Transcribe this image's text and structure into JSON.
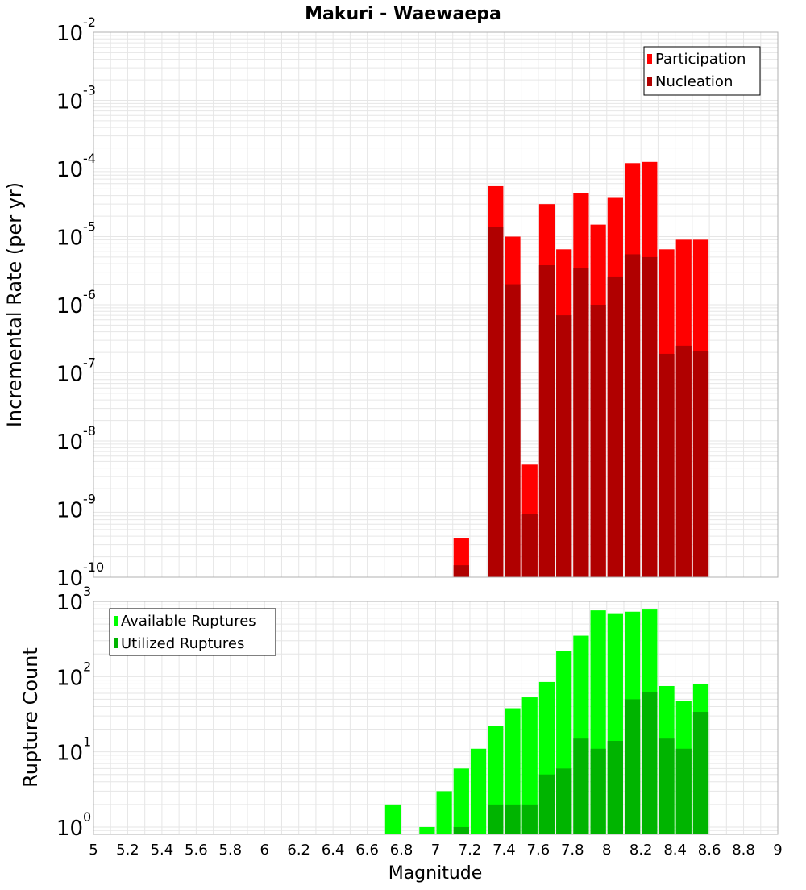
{
  "title": "Makuri - Waewaepa",
  "xlabel": "Magnitude",
  "x_ticks": [
    "5",
    "5.2",
    "5.4",
    "5.6",
    "5.8",
    "6",
    "6.2",
    "6.4",
    "6.6",
    "6.8",
    "7",
    "7.2",
    "7.4",
    "7.6",
    "7.8",
    "8",
    "8.2",
    "8.4",
    "8.6",
    "8.8",
    "9"
  ],
  "colors": {
    "participation": "#ff0000",
    "nucleation": "#b00000",
    "available": "#00ff00",
    "utilized": "#00b400",
    "grid": "#e6e6e6",
    "frame": "#b0b0b0"
  },
  "chart_data": [
    {
      "type": "bar",
      "ylabel": "Incremental Rate (per yr)",
      "y_scale": "log",
      "ylim": [
        1e-10,
        0.01
      ],
      "xlim": [
        5,
        9
      ],
      "legend": "top-right",
      "y_ticks": [
        {
          "base": "10",
          "exp": "-10"
        },
        {
          "base": "10",
          "exp": "-9"
        },
        {
          "base": "10",
          "exp": "-8"
        },
        {
          "base": "10",
          "exp": "-7"
        },
        {
          "base": "10",
          "exp": "-6"
        },
        {
          "base": "10",
          "exp": "-5"
        },
        {
          "base": "10",
          "exp": "-4"
        },
        {
          "base": "10",
          "exp": "-3"
        },
        {
          "base": "10",
          "exp": "-2"
        }
      ],
      "x": [
        7.15,
        7.35,
        7.45,
        7.55,
        7.65,
        7.75,
        7.85,
        7.95,
        8.05,
        8.15,
        8.25,
        8.35,
        8.45,
        8.55
      ],
      "series": [
        {
          "name": "Participation",
          "values": [
            3.8e-10,
            5.5e-05,
            1e-05,
            4.5e-09,
            3e-05,
            6.5e-06,
            4.3e-05,
            1.5e-05,
            3.8e-05,
            0.00012,
            0.000125,
            6.5e-06,
            9e-06,
            9e-06
          ]
        },
        {
          "name": "Nucleation",
          "values": [
            1.5e-10,
            1.4e-05,
            2e-06,
            8.5e-10,
            3.8e-06,
            7e-07,
            3.5e-06,
            1e-06,
            2.6e-06,
            5.5e-06,
            5e-06,
            1.9e-07,
            2.5e-07,
            2.1e-07
          ]
        }
      ]
    },
    {
      "type": "bar",
      "ylabel": "Rupture Count",
      "y_scale": "log",
      "ylim": [
        0.8,
        1000
      ],
      "xlim": [
        5,
        9
      ],
      "legend": "top-left",
      "y_ticks": [
        {
          "base": "10",
          "exp": "0"
        },
        {
          "base": "10",
          "exp": "1"
        },
        {
          "base": "10",
          "exp": "2"
        },
        {
          "base": "10",
          "exp": "3"
        }
      ],
      "x": [
        6.75,
        6.95,
        7.05,
        7.15,
        7.25,
        7.35,
        7.45,
        7.55,
        7.65,
        7.75,
        7.85,
        7.95,
        8.05,
        8.15,
        8.25,
        8.35,
        8.45,
        8.55
      ],
      "series": [
        {
          "name": "Available Ruptures",
          "values": [
            2,
            1,
            3,
            6,
            11,
            22,
            38,
            53,
            85,
            220,
            350,
            760,
            680,
            730,
            780,
            75,
            47,
            80
          ]
        },
        {
          "name": "Utilized Ruptures",
          "values": [
            0,
            0,
            0,
            1,
            0,
            2,
            2,
            2,
            5,
            6,
            15,
            11,
            14,
            50,
            62,
            15,
            11,
            34
          ]
        }
      ]
    }
  ]
}
